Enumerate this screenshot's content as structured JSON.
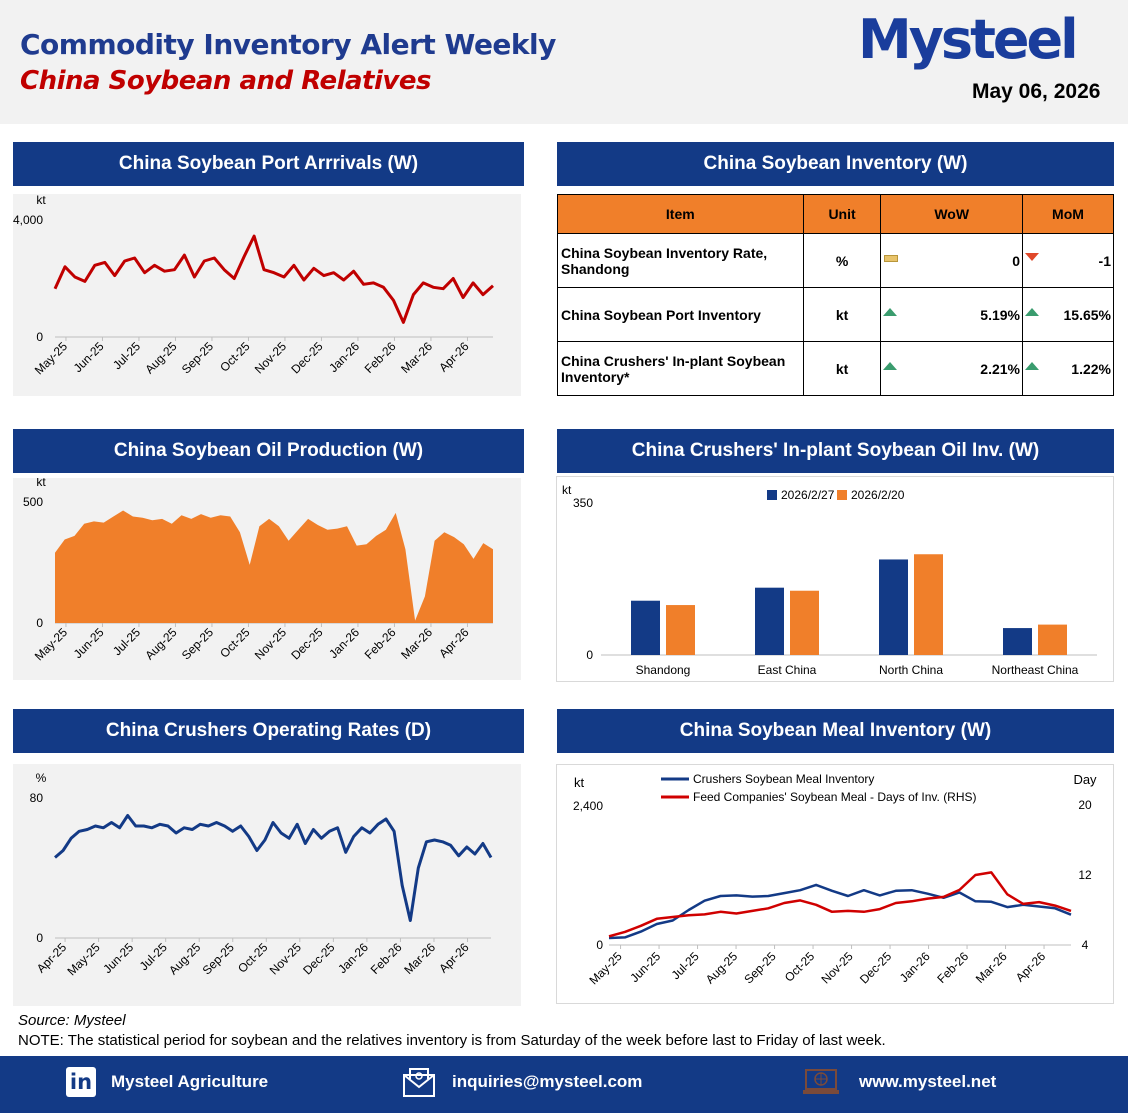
{
  "header": {
    "title": "Commodity Inventory Alert Weekly",
    "subtitle": "China Soybean and Relatives",
    "logo": "Mysteel",
    "date": "May 06, 2026"
  },
  "panels": {
    "arrivals": "China Soybean Port Arrrivals (W)",
    "inventory": "China Soybean Inventory (W)",
    "oil_prod": "China Soybean Oil Production (W)",
    "oil_inv": "China Crushers' In-plant Soybean Oil Inv. (W)",
    "operating": "China Crushers Operating Rates (D)",
    "meal_inv": "China Soybean Meal Inventory (W)"
  },
  "table": {
    "headers": [
      "Item",
      "Unit",
      "WoW",
      "MoM"
    ],
    "rows": [
      {
        "item": "China Soybean Inventory Rate, Shandong",
        "unit": "%",
        "wow": "0",
        "wow_icon": "flat",
        "mom": "-1",
        "mom_icon": "down"
      },
      {
        "item": "China Soybean Port Inventory",
        "unit": "kt",
        "wow": "5.19%",
        "wow_icon": "up",
        "mom": "15.65%",
        "mom_icon": "up"
      },
      {
        "item": "China Crushers' In-plant Soybean Inventory*",
        "unit": "kt",
        "wow": "2.21%",
        "wow_icon": "up",
        "mom": "1.22%",
        "mom_icon": "up"
      }
    ]
  },
  "colors": {
    "navy": "#133a86",
    "red": "#c00000",
    "orange": "#f07f2a",
    "up": "#3a9c6e",
    "down": "#e0482a",
    "flat": "#e8c36a"
  },
  "chart_data": [
    {
      "id": "arrivals",
      "type": "line",
      "ylabel": "kt",
      "ylim": [
        0,
        4000
      ],
      "yticks": [
        "0",
        "4,000"
      ],
      "x_labels": [
        "May-25",
        "Jun-25",
        "Jul-25",
        "Aug-25",
        "Sep-25",
        "Oct-25",
        "Nov-25",
        "Dec-25",
        "Jan-26",
        "Feb-26",
        "Mar-26",
        "Apr-26"
      ],
      "color": "#c00000",
      "values": [
        1650,
        2400,
        2050,
        1900,
        2450,
        2550,
        2100,
        2600,
        2700,
        2200,
        2450,
        2250,
        2300,
        2800,
        2050,
        2600,
        2700,
        2300,
        2000,
        2750,
        3450,
        2300,
        2200,
        2050,
        2450,
        1950,
        2350,
        2100,
        2200,
        1950,
        2250,
        1800,
        1850,
        1700,
        1250,
        500,
        1450,
        1850,
        1700,
        1650,
        2000,
        1350,
        1850,
        1450,
        1750
      ]
    },
    {
      "id": "oil_prod",
      "type": "area",
      "ylabel": "kt",
      "ylim": [
        0,
        500
      ],
      "yticks": [
        "0",
        "500"
      ],
      "x_labels": [
        "May-25",
        "Jun-25",
        "Jul-25",
        "Aug-25",
        "Sep-25",
        "Oct-25",
        "Nov-25",
        "Dec-25",
        "Jan-26",
        "Feb-26",
        "Mar-26",
        "Apr-26"
      ],
      "color": "#f07f2a",
      "values": [
        290,
        345,
        360,
        410,
        420,
        415,
        440,
        465,
        440,
        435,
        425,
        430,
        410,
        445,
        430,
        450,
        435,
        445,
        440,
        375,
        240,
        400,
        430,
        400,
        340,
        385,
        430,
        405,
        385,
        390,
        400,
        320,
        325,
        360,
        385,
        455,
        305,
        10,
        110,
        340,
        375,
        355,
        325,
        265,
        330,
        305
      ]
    },
    {
      "id": "oil_inv",
      "type": "bar",
      "ylabel": "kt",
      "ylim": [
        0,
        350
      ],
      "yticks": [
        "0",
        "350"
      ],
      "categories": [
        "Shandong",
        "East China",
        "North China",
        "Northeast China"
      ],
      "series": [
        {
          "name": "2026/2/27",
          "color": "#133a86",
          "values": [
            125,
            155,
            220,
            62
          ]
        },
        {
          "name": "2026/2/20",
          "color": "#f07f2a",
          "values": [
            115,
            148,
            232,
            70
          ]
        }
      ]
    },
    {
      "id": "operating",
      "type": "line",
      "ylabel": "%",
      "ylim": [
        0,
        80
      ],
      "yticks": [
        "0",
        "80"
      ],
      "x_labels": [
        "Apr-25",
        "May-25",
        "Jun-25",
        "Jul-25",
        "Aug-25",
        "Sep-25",
        "Oct-25",
        "Nov-25",
        "Dec-25",
        "Jan-26",
        "Feb-26",
        "Mar-26",
        "Apr-26"
      ],
      "color": "#133a86",
      "values": [
        46,
        50,
        57,
        61,
        62,
        64,
        63,
        66,
        63,
        70,
        64,
        64,
        63,
        65,
        64,
        60,
        63,
        62,
        65,
        64,
        66,
        64,
        61,
        64,
        58,
        50,
        56,
        66,
        60,
        57,
        65,
        54,
        62,
        57,
        61,
        63,
        49,
        58,
        63,
        60,
        65,
        68,
        61,
        30,
        10,
        40,
        55,
        56,
        55,
        53,
        47,
        52,
        48,
        54,
        46
      ]
    },
    {
      "id": "meal_inv",
      "type": "line",
      "x_labels": [
        "May-25",
        "Jun-25",
        "Jul-25",
        "Aug-25",
        "Sep-25",
        "Oct-25",
        "Nov-25",
        "Dec-25",
        "Jan-26",
        "Feb-26",
        "Mar-26",
        "Apr-26"
      ],
      "left_axis": {
        "label": "kt",
        "ylim": [
          0,
          2400
        ],
        "yticks": [
          "0",
          "2,400"
        ]
      },
      "right_axis": {
        "label": "Day",
        "ylim": [
          4,
          20
        ],
        "yticks": [
          "4",
          "12",
          "20"
        ]
      },
      "series": [
        {
          "name": "Crushers Soybean Meal Inventory",
          "axis": "left",
          "color": "#133a86",
          "values": [
            120,
            130,
            230,
            360,
            420,
            600,
            760,
            840,
            850,
            830,
            840,
            890,
            940,
            1030,
            930,
            840,
            940,
            850,
            930,
            940,
            880,
            810,
            900,
            750,
            740,
            650,
            690,
            660,
            630,
            520
          ]
        },
        {
          "name": "Feed Companies' Soybean Meal - Days of Inv. (RHS)",
          "axis": "right",
          "color": "#d00000",
          "values": [
            5.0,
            5.5,
            6.2,
            7.0,
            7.2,
            7.4,
            7.5,
            7.8,
            7.6,
            7.9,
            8.2,
            8.8,
            9.1,
            8.6,
            7.8,
            7.9,
            7.8,
            8.1,
            8.8,
            9.0,
            9.3,
            9.5,
            10.3,
            12.0,
            12.3,
            9.8,
            8.7,
            8.9,
            8.5,
            7.9
          ]
        }
      ]
    }
  ],
  "source": "Source: Mysteel",
  "note": "NOTE: The statistical period for soybean and the relatives inventory is from Saturday of the week before last to Friday of last week.",
  "footer": {
    "linkedin": "Mysteel Agriculture",
    "email": "inquiries@mysteel.com",
    "web": "www.mysteel.net"
  }
}
